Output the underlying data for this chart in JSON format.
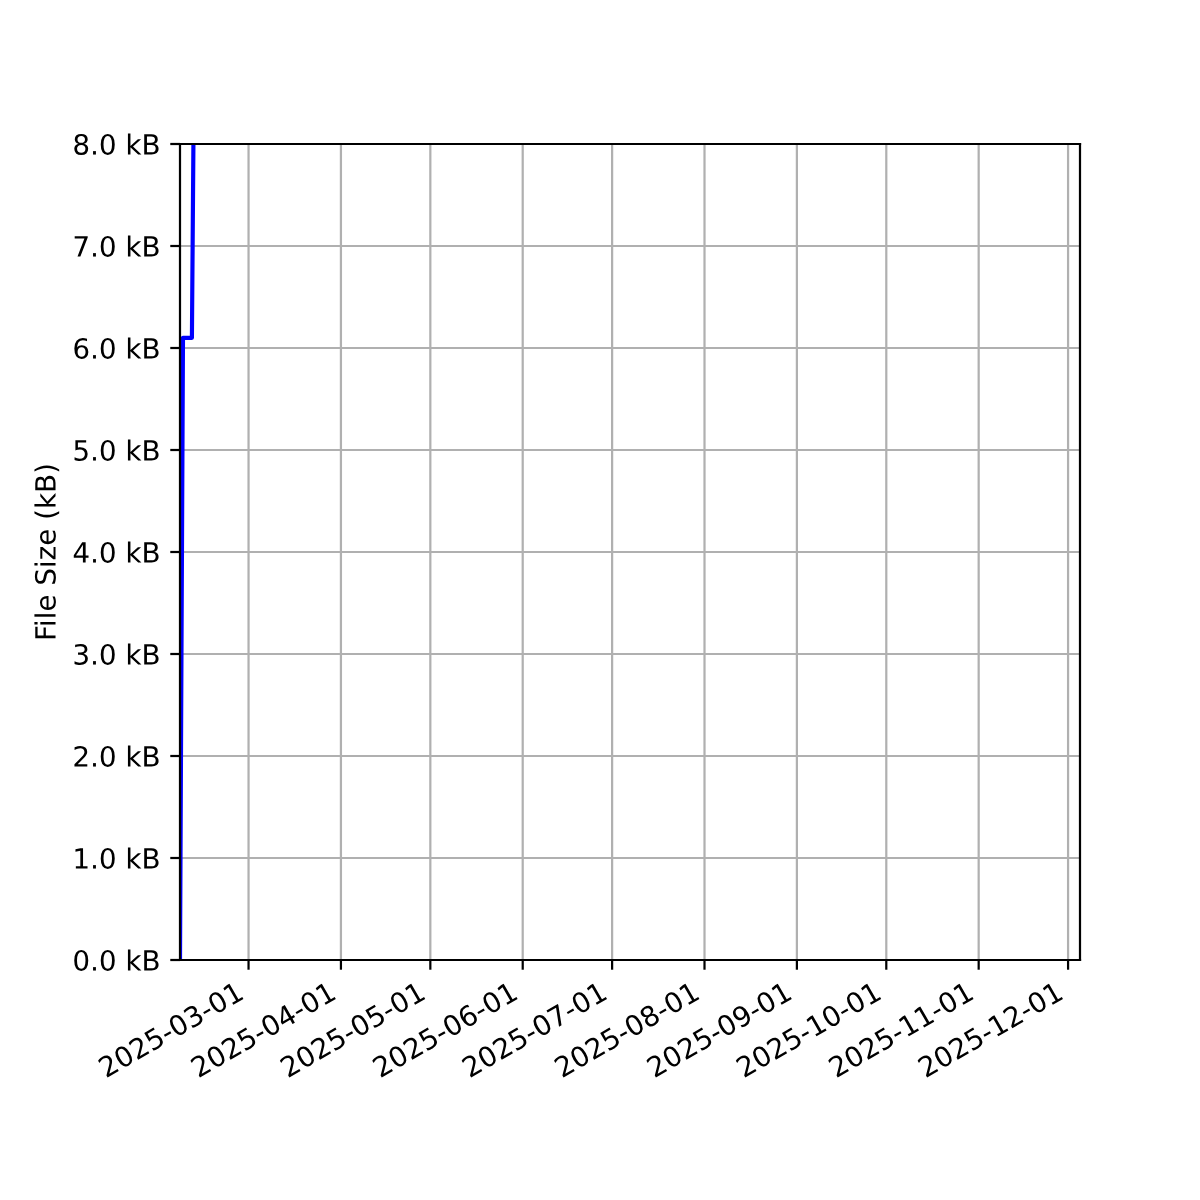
{
  "chart_data": {
    "type": "line",
    "ylabel": "File Size (kB)",
    "x": [
      "2025-02-06",
      "2025-02-07",
      "2025-02-10",
      "2025-02-10T12:00"
    ],
    "series": [
      {
        "color": "#0000ff",
        "values": [
          0,
          6.1,
          6.1,
          8.0
        ]
      }
    ],
    "xlim": [
      "2025-02-06",
      "2025-12-05"
    ],
    "xticks": [
      "2025-03-01",
      "2025-04-01",
      "2025-05-01",
      "2025-06-01",
      "2025-07-01",
      "2025-08-01",
      "2025-09-01",
      "2025-10-01",
      "2025-11-01",
      "2025-12-01"
    ],
    "ylim": [
      0,
      8
    ],
    "yticks": [
      {
        "value": 0,
        "label": "0.0 kB"
      },
      {
        "value": 1,
        "label": "1.0 kB"
      },
      {
        "value": 2,
        "label": "2.0 kB"
      },
      {
        "value": 3,
        "label": "3.0 kB"
      },
      {
        "value": 4,
        "label": "4.0 kB"
      },
      {
        "value": 5,
        "label": "5.0 kB"
      },
      {
        "value": 6,
        "label": "6.0 kB"
      },
      {
        "value": 7,
        "label": "7.0 kB"
      },
      {
        "value": 8,
        "label": "8.0 kB"
      }
    ],
    "grid": true
  }
}
